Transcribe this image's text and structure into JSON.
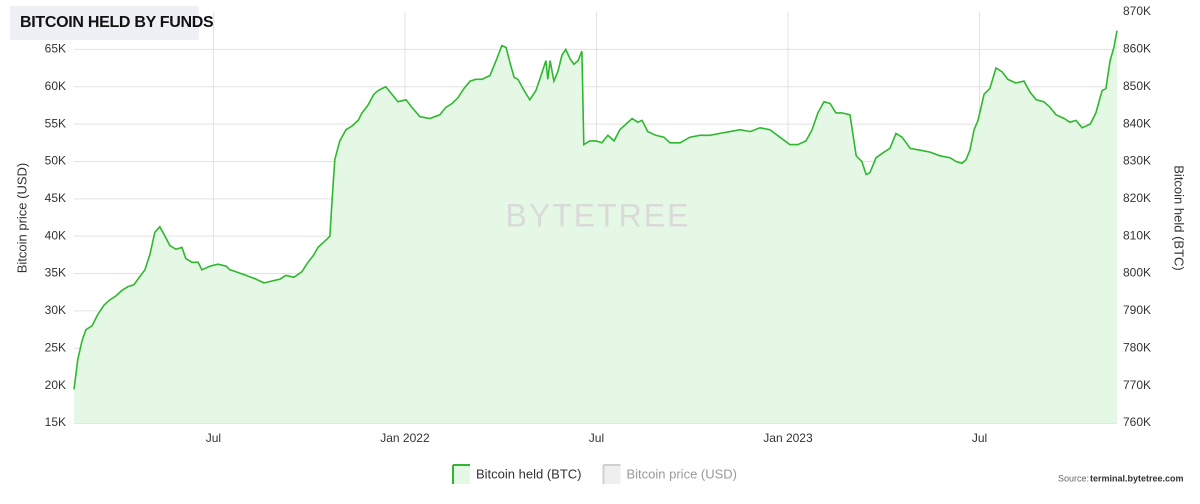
{
  "chart_data": {
    "type": "area",
    "title": "BITCOIN HELD BY FUNDS",
    "y_label": "Bitcoin price (USD)",
    "y2_label": "Bitcoin held (BTC)",
    "watermark": "BYTETREE",
    "source_label": "Source:",
    "source": "terminal.bytetree.com",
    "grid": true,
    "legend": "bottom",
    "x": [
      2021.136,
      2021.146,
      2021.157,
      2021.167,
      2021.183,
      2021.198,
      2021.214,
      2021.23,
      2021.245,
      2021.261,
      2021.277,
      2021.292,
      2021.303,
      2021.321,
      2021.334,
      2021.347,
      2021.36,
      2021.371,
      2021.386,
      2021.402,
      2021.418,
      2021.428,
      2021.444,
      2021.46,
      2021.47,
      2021.491,
      2021.512,
      2021.533,
      2021.543,
      2021.559,
      2021.585,
      2021.611,
      2021.632,
      2021.653,
      2021.674,
      2021.689,
      2021.71,
      2021.731,
      2021.747,
      2021.762,
      2021.773,
      2021.789,
      2021.804,
      2021.809,
      2021.817,
      2021.83,
      2021.846,
      2021.862,
      2021.878,
      2021.888,
      2021.903,
      2021.919,
      2021.93,
      2021.95,
      2021.966,
      2021.982,
      2022.003,
      2022.018,
      2022.039,
      2022.065,
      2022.091,
      2022.107,
      2022.123,
      2022.138,
      2022.154,
      2022.17,
      2022.185,
      2022.201,
      2022.222,
      2022.238,
      2022.253,
      2022.264,
      2022.274,
      2022.285,
      2022.295,
      2022.311,
      2022.326,
      2022.342,
      2022.352,
      2022.368,
      2022.373,
      2022.379,
      2022.389,
      2022.399,
      2022.41,
      2022.42,
      2022.431,
      2022.441,
      2022.452,
      2022.462,
      2022.467,
      2022.483,
      2022.499,
      2022.514,
      2022.53,
      2022.546,
      2022.561,
      2022.577,
      2022.593,
      2022.608,
      2022.619,
      2022.634,
      2022.655,
      2022.676,
      2022.692,
      2022.718,
      2022.744,
      2022.77,
      2022.796,
      2022.822,
      2022.849,
      2022.875,
      2022.901,
      2022.927,
      2022.953,
      2022.979,
      2023.005,
      2023.026,
      2023.047,
      2023.063,
      2023.078,
      2023.094,
      2023.11,
      2023.125,
      2023.141,
      2023.162,
      2023.178,
      2023.193,
      2023.204,
      2023.214,
      2023.23,
      2023.251,
      2023.266,
      2023.282,
      2023.298,
      2023.319,
      2023.345,
      2023.371,
      2023.397,
      2023.423,
      2023.439,
      2023.454,
      2023.465,
      2023.475,
      2023.486,
      2023.496,
      2023.512,
      2023.527,
      2023.543,
      2023.559,
      2023.574,
      2023.595,
      2023.616,
      2023.632,
      2023.648,
      2023.668,
      2023.684,
      2023.7,
      2023.721,
      2023.736,
      2023.752,
      2023.768,
      2023.789,
      2023.804,
      2023.82,
      2023.83,
      2023.841,
      2023.851,
      2023.859
    ],
    "series": [
      {
        "name": "Bitcoin held (BTC)",
        "color": "#2fb82f",
        "fill": "#e5f7e5",
        "axis": "y2",
        "values": [
          769000,
          777000,
          782000,
          785000,
          786000,
          789000,
          791500,
          793000,
          794000,
          795500,
          796500,
          797000,
          798500,
          801000,
          805000,
          811000,
          812500,
          810500,
          807500,
          806500,
          807000,
          804000,
          803000,
          803000,
          801000,
          802000,
          802500,
          802000,
          801000,
          800500,
          799500,
          798500,
          797500,
          798000,
          798500,
          799500,
          799000,
          800500,
          803000,
          805000,
          807000,
          808500,
          810000,
          818500,
          830500,
          835500,
          838500,
          839500,
          841000,
          843000,
          845000,
          848000,
          849000,
          850000,
          848000,
          846000,
          846500,
          844500,
          842000,
          841500,
          842500,
          844500,
          845500,
          847000,
          849500,
          851500,
          852000,
          852000,
          853000,
          857000,
          861000,
          860500,
          856500,
          852500,
          852000,
          849000,
          846500,
          849000,
          852000,
          857000,
          852000,
          857000,
          851500,
          854000,
          858500,
          860000,
          857500,
          856000,
          857000,
          859500,
          834500,
          835500,
          835500,
          835000,
          837000,
          835500,
          838500,
          840000,
          841500,
          840500,
          841000,
          838000,
          837000,
          836500,
          835000,
          835000,
          836500,
          837000,
          837000,
          837500,
          838000,
          838500,
          838000,
          839000,
          838500,
          836500,
          834500,
          834500,
          835500,
          838500,
          843000,
          846000,
          845500,
          843000,
          843000,
          842500,
          831500,
          830000,
          826500,
          827000,
          831000,
          832500,
          833500,
          837500,
          836500,
          833500,
          833000,
          832500,
          831500,
          831000,
          830000,
          829500,
          830500,
          833000,
          838500,
          841000,
          848000,
          849500,
          855000,
          854000,
          852000,
          851000,
          851500,
          848500,
          846500,
          846000,
          844500,
          842500,
          841500,
          840500,
          841000,
          839000,
          840000,
          843000,
          849000,
          849500,
          857000,
          860500,
          865000
        ]
      }
    ],
    "inactive_series": [
      {
        "name": "Bitcoin price (USD)",
        "color": "#cfcfcf"
      }
    ],
    "xlim": [
      2021.136,
      2023.859
    ],
    "xticks": [
      {
        "value": 2021.5,
        "label": "Jul"
      },
      {
        "value": 2022,
        "label": "Jan 2022"
      },
      {
        "value": 2022.5,
        "label": "Jul"
      },
      {
        "value": 2023,
        "label": "Jan 2023"
      },
      {
        "value": 2023.5,
        "label": "Jul"
      }
    ],
    "ylim": [
      15000,
      70000
    ],
    "yticks": [
      {
        "value": 15000,
        "label": "15K"
      },
      {
        "value": 20000,
        "label": "20K"
      },
      {
        "value": 25000,
        "label": "25K"
      },
      {
        "value": 30000,
        "label": "30K"
      },
      {
        "value": 35000,
        "label": "35K"
      },
      {
        "value": 40000,
        "label": "40K"
      },
      {
        "value": 45000,
        "label": "45K"
      },
      {
        "value": 50000,
        "label": "50K"
      },
      {
        "value": 55000,
        "label": "55K"
      },
      {
        "value": 60000,
        "label": "60K"
      },
      {
        "value": 65000,
        "label": "65K"
      }
    ],
    "y2lim": [
      760000,
      870000
    ],
    "y2ticks": [
      {
        "value": 760000,
        "label": "760K"
      },
      {
        "value": 770000,
        "label": "770K"
      },
      {
        "value": 780000,
        "label": "780K"
      },
      {
        "value": 790000,
        "label": "790K"
      },
      {
        "value": 800000,
        "label": "800K"
      },
      {
        "value": 810000,
        "label": "810K"
      },
      {
        "value": 820000,
        "label": "820K"
      },
      {
        "value": 830000,
        "label": "830K"
      },
      {
        "value": 840000,
        "label": "840K"
      },
      {
        "value": 850000,
        "label": "850K"
      },
      {
        "value": 860000,
        "label": "860K"
      },
      {
        "value": 870000,
        "label": "870K"
      }
    ]
  }
}
